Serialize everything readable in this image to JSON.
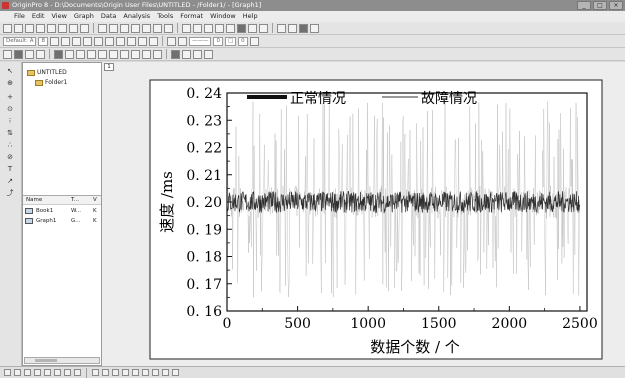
{
  "window": {
    "title": "OriginPro 8 - D:\\Documents\\Origin User Files\\UNTITLED - /Folder1/ - [Graph1]",
    "controls": [
      "_",
      "□",
      "×"
    ]
  },
  "menu": [
    "File",
    "Edit",
    "View",
    "Graph",
    "Data",
    "Analysis",
    "Tools",
    "Format",
    "Window",
    "Help"
  ],
  "format_toolbar": {
    "font_name": "Default: A",
    "font_size": "8"
  },
  "project_explorer": {
    "root": "UNTITLED",
    "folder": "Folder1",
    "columns": [
      "Name",
      "T...",
      "V"
    ],
    "items": [
      {
        "name": "Book1",
        "type": "W...",
        "v": "K"
      },
      {
        "name": "Graph1",
        "type": "G...",
        "v": "K"
      }
    ]
  },
  "graph_tab": "1",
  "chart_data": {
    "type": "line",
    "xlabel": "数据个数 / 个",
    "ylabel": "速度 /ms",
    "xlim": [
      0,
      2550
    ],
    "ylim": [
      0.16,
      0.24
    ],
    "xticks": [
      "0",
      "500",
      "1000",
      "1500",
      "2000",
      "2500"
    ],
    "yticks": [
      "0. 16",
      "0. 17",
      "0. 18",
      "0. 19",
      "0. 20",
      "0. 21",
      "0. 22",
      "0. 23",
      "0. 24"
    ],
    "legend_position": "top",
    "series": [
      {
        "name": "正常情况",
        "style": "thick-black",
        "mean": 0.2,
        "amplitude": 0.004
      },
      {
        "name": "故障情况",
        "style": "thin-gray",
        "mean": 0.2,
        "amplitude_min": 0.165,
        "amplitude_max": 0.237
      }
    ],
    "colors": {
      "normal": "#111111",
      "fault": "#9a9a9a"
    }
  }
}
